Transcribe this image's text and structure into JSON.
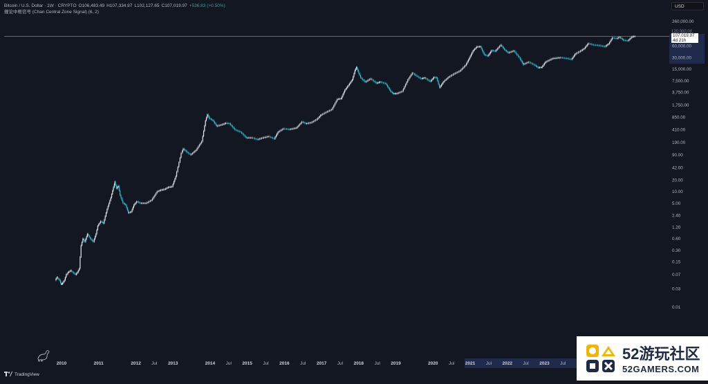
{
  "header": {
    "symbol": "Bitcoin / U.S. Dollar · 1W · CRYPTO",
    "open": "O106,483.49",
    "high": "H107,334.87",
    "low": "L102,127.65",
    "close": "C107,019.97",
    "change": "+536.83 (+0.50%)",
    "indicator": "缠论中枢信号 (Chan Central Zone Signal) (6, 2)"
  },
  "currency_button": "USD",
  "price_tag": {
    "price": "107,019.97",
    "countdown": "4d 21h",
    "hidden_label": "120,000.00"
  },
  "footer": {
    "brand": "TradingView"
  },
  "watermark": {
    "title": "52游玩社区",
    "site": "52GAMERS.COM"
  },
  "colors": {
    "background": "#131722",
    "candle_up": "#e8eaf0",
    "candle_down": "#26c6da",
    "grid": "#1e222d",
    "axis_highlight": "#2a3a70",
    "current_price_line": "#9598a1"
  },
  "chart_data": {
    "type": "line",
    "title": "",
    "scale": "log",
    "ylabel": "",
    "xlabel": "",
    "x_unit": "year",
    "yticks": [
      260000,
      120000,
      60000,
      30000,
      15000,
      7500,
      3750,
      1750,
      850,
      410,
      190,
      90,
      42,
      20,
      10,
      5,
      2.4,
      1.2,
      0.6,
      0.3,
      0.15,
      0.07,
      0.03,
      0.01
    ],
    "ytick_labels": [
      "260,000.00",
      "120,000.00",
      "60,000.00",
      "30,000.00",
      "15,000.00",
      "7,500.00",
      "3,750.00",
      "1,750.00",
      "850.00",
      "410.00",
      "190.00",
      "90.00",
      "42.00",
      "20.00",
      "10.00",
      "5.00",
      "2.40",
      "1.20",
      "0.60",
      "0.30",
      "0.15",
      "0.07",
      "0.03",
      "0.01"
    ],
    "xticks": [
      {
        "label": "2010",
        "year": 2010.0
      },
      {
        "label": "2011",
        "year": 2011.0
      },
      {
        "label": "2012",
        "year": 2012.0
      },
      {
        "label": "Jul",
        "year": 2012.5
      },
      {
        "label": "2013",
        "year": 2013.0
      },
      {
        "label": "2014",
        "year": 2014.0
      },
      {
        "label": "Jul",
        "year": 2014.5
      },
      {
        "label": "2015",
        "year": 2015.0
      },
      {
        "label": "Jul",
        "year": 2015.5
      },
      {
        "label": "2016",
        "year": 2016.0
      },
      {
        "label": "Jul",
        "year": 2016.5
      },
      {
        "label": "2017",
        "year": 2017.0
      },
      {
        "label": "Jul",
        "year": 2017.5
      },
      {
        "label": "2018",
        "year": 2018.0
      },
      {
        "label": "Jul",
        "year": 2018.5
      },
      {
        "label": "2019",
        "year": 2019.0
      },
      {
        "label": "2020",
        "year": 2020.0
      },
      {
        "label": "Jul",
        "year": 2020.5
      },
      {
        "label": "2021",
        "year": 2021.0
      },
      {
        "label": "Jul",
        "year": 2021.5
      },
      {
        "label": "2022",
        "year": 2022.0
      },
      {
        "label": "Jul",
        "year": 2022.5
      },
      {
        "label": "2023",
        "year": 2023.0
      },
      {
        "label": "Jul",
        "year": 2023.5
      }
    ],
    "series": [
      {
        "values": [
          [
            2009.85,
            0.05
          ],
          [
            2009.9,
            0.06
          ],
          [
            2009.97,
            0.05
          ],
          [
            2010.0,
            0.04
          ],
          [
            2010.03,
            0.04
          ],
          [
            2010.1,
            0.05
          ],
          [
            2010.15,
            0.07
          ],
          [
            2010.2,
            0.08
          ],
          [
            2010.27,
            0.09
          ],
          [
            2010.33,
            0.08
          ],
          [
            2010.4,
            0.07
          ],
          [
            2010.45,
            0.08
          ],
          [
            2010.5,
            0.1
          ],
          [
            2010.55,
            0.4
          ],
          [
            2010.6,
            0.6
          ],
          [
            2010.65,
            0.5
          ],
          [
            2010.72,
            0.8
          ],
          [
            2010.8,
            0.6
          ],
          [
            2010.88,
            0.5
          ],
          [
            2010.95,
            0.8
          ],
          [
            2011.0,
            1.3
          ],
          [
            2011.08,
            1.7
          ],
          [
            2011.15,
            1.5
          ],
          [
            2011.25,
            3.5
          ],
          [
            2011.35,
            7
          ],
          [
            2011.42,
            13
          ],
          [
            2011.45,
            18
          ],
          [
            2011.5,
            12
          ],
          [
            2011.55,
            14
          ],
          [
            2011.6,
            8
          ],
          [
            2011.68,
            5
          ],
          [
            2011.75,
            4.5
          ],
          [
            2011.82,
            2.8
          ],
          [
            2011.9,
            3
          ],
          [
            2011.97,
            4.5
          ],
          [
            2012.05,
            5.5
          ],
          [
            2012.15,
            5
          ],
          [
            2012.3,
            5
          ],
          [
            2012.45,
            6
          ],
          [
            2012.6,
            10
          ],
          [
            2012.7,
            11
          ],
          [
            2012.8,
            11.5
          ],
          [
            2012.9,
            13
          ],
          [
            2013.0,
            13.5
          ],
          [
            2013.1,
            25
          ],
          [
            2013.25,
            100
          ],
          [
            2013.3,
            130
          ],
          [
            2013.38,
            110
          ],
          [
            2013.5,
            90
          ],
          [
            2013.65,
            120
          ],
          [
            2013.8,
            200
          ],
          [
            2013.9,
            700
          ],
          [
            2013.95,
            1000
          ],
          [
            2014.0,
            800
          ],
          [
            2014.1,
            700
          ],
          [
            2014.2,
            500
          ],
          [
            2014.35,
            550
          ],
          [
            2014.45,
            600
          ],
          [
            2014.55,
            580
          ],
          [
            2014.7,
            400
          ],
          [
            2014.85,
            350
          ],
          [
            2015.0,
            250
          ],
          [
            2015.15,
            250
          ],
          [
            2015.3,
            225
          ],
          [
            2015.45,
            250
          ],
          [
            2015.6,
            270
          ],
          [
            2015.75,
            235
          ],
          [
            2015.85,
            350
          ],
          [
            2016.0,
            430
          ],
          [
            2016.15,
            410
          ],
          [
            2016.35,
            450
          ],
          [
            2016.5,
            650
          ],
          [
            2016.6,
            580
          ],
          [
            2016.75,
            620
          ],
          [
            2016.9,
            750
          ],
          [
            2017.0,
            960
          ],
          [
            2017.15,
            1150
          ],
          [
            2017.3,
            1350
          ],
          [
            2017.45,
            2500
          ],
          [
            2017.55,
            2600
          ],
          [
            2017.65,
            4300
          ],
          [
            2017.75,
            5800
          ],
          [
            2017.85,
            8000
          ],
          [
            2017.92,
            14000
          ],
          [
            2017.96,
            17000
          ],
          [
            2018.0,
            13500
          ],
          [
            2018.08,
            9000
          ],
          [
            2018.2,
            7000
          ],
          [
            2018.35,
            8500
          ],
          [
            2018.5,
            6500
          ],
          [
            2018.6,
            7000
          ],
          [
            2018.75,
            6400
          ],
          [
            2018.88,
            4000
          ],
          [
            2018.95,
            3500
          ],
          [
            2019.05,
            3500
          ],
          [
            2019.2,
            4000
          ],
          [
            2019.35,
            8000
          ],
          [
            2019.47,
            12000
          ],
          [
            2019.55,
            10500
          ],
          [
            2019.7,
            8500
          ],
          [
            2019.8,
            9000
          ],
          [
            2019.95,
            7200
          ],
          [
            2020.05,
            9300
          ],
          [
            2020.12,
            9000
          ],
          [
            2020.2,
            5000
          ],
          [
            2020.3,
            7000
          ],
          [
            2020.45,
            9400
          ],
          [
            2020.6,
            11500
          ],
          [
            2020.75,
            13500
          ],
          [
            2020.9,
            19000
          ],
          [
            2021.0,
            29000
          ],
          [
            2021.1,
            45000
          ],
          [
            2021.2,
            57000
          ],
          [
            2021.3,
            58000
          ],
          [
            2021.4,
            36000
          ],
          [
            2021.5,
            33000
          ],
          [
            2021.6,
            46000
          ],
          [
            2021.7,
            44000
          ],
          [
            2021.85,
            64000
          ],
          [
            2021.95,
            48000
          ],
          [
            2022.05,
            40000
          ],
          [
            2022.2,
            45000
          ],
          [
            2022.35,
            30000
          ],
          [
            2022.45,
            20000
          ],
          [
            2022.6,
            23000
          ],
          [
            2022.75,
            19500
          ],
          [
            2022.85,
            16500
          ],
          [
            2022.95,
            16800
          ],
          [
            2023.05,
            23000
          ],
          [
            2023.25,
            28500
          ],
          [
            2023.45,
            30000
          ],
          [
            2023.6,
            29000
          ],
          [
            2023.75,
            27000
          ],
          [
            2023.85,
            37000
          ],
          [
            2023.97,
            43000
          ],
          [
            2024.1,
            52000
          ],
          [
            2024.2,
            70000
          ],
          [
            2024.35,
            64000
          ],
          [
            2024.5,
            62000
          ],
          [
            2024.65,
            58000
          ],
          [
            2024.75,
            68000
          ],
          [
            2024.85,
            98000
          ],
          [
            2024.97,
            94000
          ],
          [
            2025.05,
            102000
          ],
          [
            2025.15,
            85000
          ],
          [
            2025.27,
            82000
          ],
          [
            2025.38,
            104000
          ],
          [
            2025.46,
            107019.97
          ]
        ]
      }
    ],
    "current_price": 107019.97,
    "grid": false,
    "legend": "none"
  }
}
